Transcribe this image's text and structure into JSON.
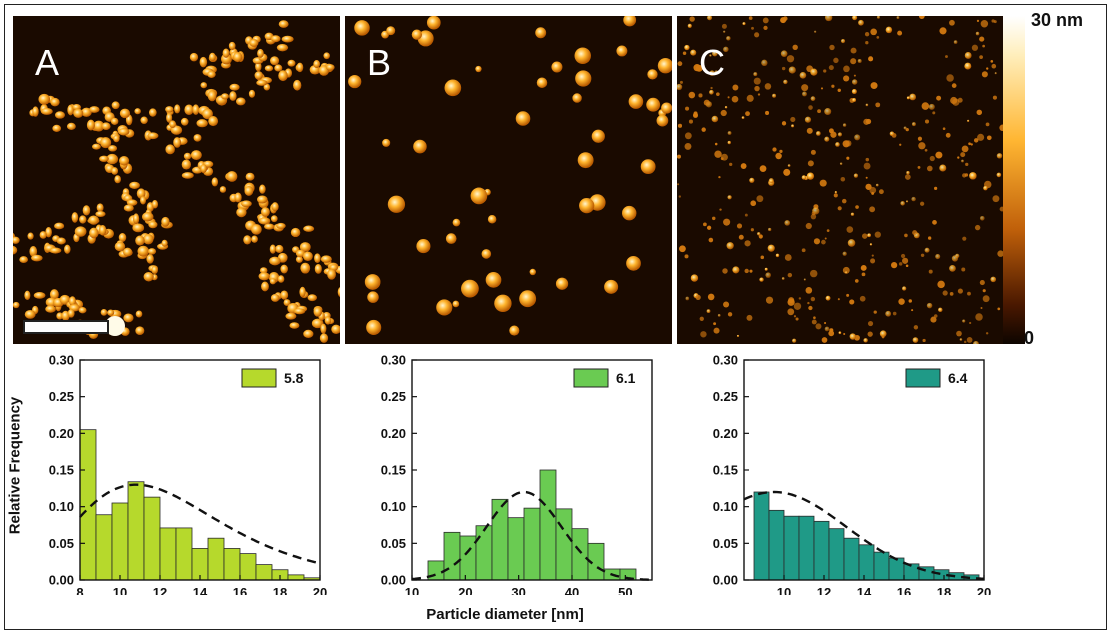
{
  "panels": [
    {
      "letter": "A",
      "image_description": "AFM height image with particles assembled into chain-like networks"
    },
    {
      "letter": "B",
      "image_description": "AFM height image with sparse, isolated larger particles"
    },
    {
      "letter": "C",
      "image_description": "AFM height image with dense, small, evenly dispersed particles"
    }
  ],
  "colorbar": {
    "max_label": "30 nm",
    "min_label": "0"
  },
  "shared_xlabel": "Particle diameter [nm]",
  "shared_ylabel": "Relative Frequency",
  "colors": {
    "bar_a": "#b6d92c",
    "bar_b": "#6acb52",
    "bar_c": "#1f9a87",
    "fit_line": "#111111"
  },
  "chart_data": [
    {
      "type": "bar",
      "legend": "5.8",
      "color": "#b6d92c",
      "xlim": [
        8,
        20
      ],
      "ylim": [
        0,
        0.3
      ],
      "xticks": [
        8,
        10,
        12,
        14,
        16,
        18,
        20
      ],
      "yticks": [
        0.0,
        0.05,
        0.1,
        0.15,
        0.2,
        0.25,
        0.3
      ],
      "bin_width": 0.8,
      "bins_start": [
        8.0,
        8.8,
        9.6,
        10.4,
        11.2,
        12.0,
        12.8,
        13.6,
        14.4,
        15.2,
        16.0,
        16.8,
        17.6,
        18.4,
        19.2
      ],
      "values": [
        0.205,
        0.089,
        0.105,
        0.134,
        0.113,
        0.071,
        0.071,
        0.043,
        0.057,
        0.043,
        0.036,
        0.021,
        0.014,
        0.007,
        0.003
      ],
      "fit": {
        "type": "lognormal-like",
        "peak_x": 10.8,
        "peak_y": 0.13
      }
    },
    {
      "type": "bar",
      "legend": "6.1",
      "color": "#6acb52",
      "xlim": [
        10,
        55
      ],
      "ylim": [
        0,
        0.3
      ],
      "xticks": [
        10,
        20,
        30,
        40,
        50
      ],
      "yticks": [
        0.0,
        0.05,
        0.1,
        0.15,
        0.2,
        0.25,
        0.3
      ],
      "bin_width": 3,
      "bins_start": [
        13,
        16,
        19,
        22,
        25,
        28,
        31,
        34,
        37,
        40,
        43,
        46,
        49
      ],
      "values": [
        0.026,
        0.065,
        0.06,
        0.074,
        0.11,
        0.085,
        0.098,
        0.15,
        0.097,
        0.07,
        0.05,
        0.015,
        0.015
      ],
      "fit": {
        "type": "gaussian",
        "peak_x": 31,
        "peak_y": 0.12
      }
    },
    {
      "type": "bar",
      "legend": "6.4",
      "color": "#1f9a87",
      "xlim": [
        8,
        20
      ],
      "ylim": [
        0,
        0.3
      ],
      "xticks": [
        10,
        12,
        14,
        16,
        18,
        20
      ],
      "yticks": [
        0.0,
        0.05,
        0.1,
        0.15,
        0.2,
        0.25,
        0.3
      ],
      "bin_width": 0.75,
      "bins_start": [
        8.5,
        9.25,
        10.0,
        10.75,
        11.5,
        12.25,
        13.0,
        13.75,
        14.5,
        15.25,
        16.0,
        16.75,
        17.5,
        18.25,
        19.0
      ],
      "values": [
        0.12,
        0.095,
        0.087,
        0.087,
        0.08,
        0.07,
        0.057,
        0.048,
        0.038,
        0.03,
        0.022,
        0.018,
        0.014,
        0.01,
        0.007
      ],
      "fit": {
        "type": "half-gaussian",
        "peak_x": 9.5,
        "peak_y": 0.12
      }
    }
  ]
}
